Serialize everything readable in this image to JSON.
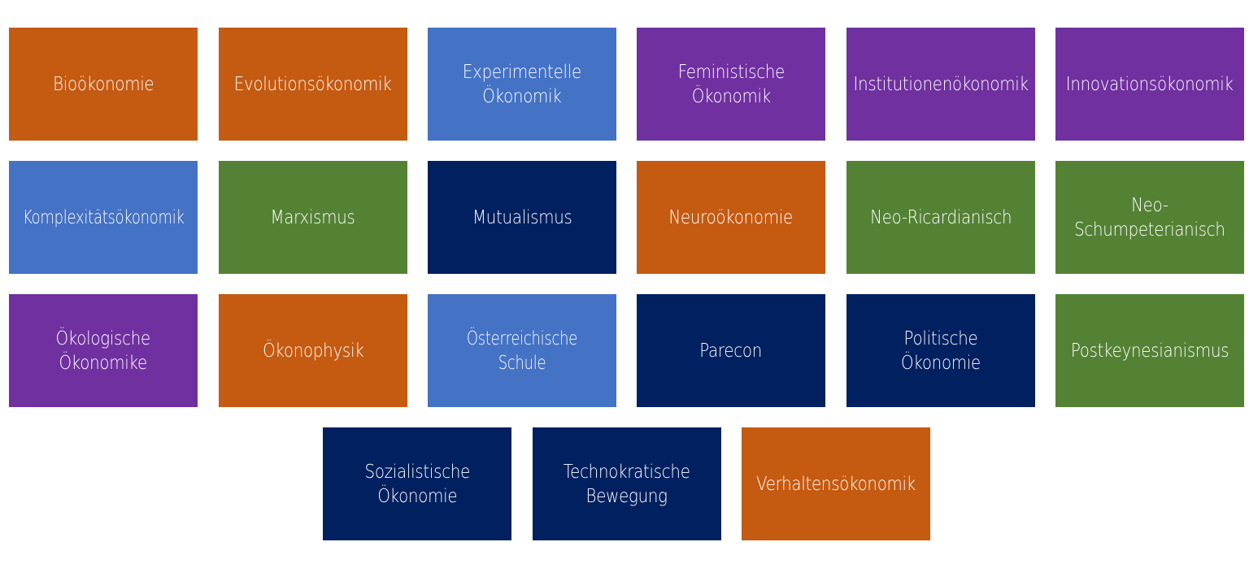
{
  "colors": {
    "orange": "#c55a11",
    "blue": "#4472c4",
    "purple": "#7030a0",
    "green": "#548235",
    "navy": "#002060"
  },
  "tiles": [
    {
      "label": "Bioökonomie",
      "color": "orange"
    },
    {
      "label": "Evolutionsökonomik",
      "color": "orange"
    },
    {
      "label": "Experimentelle\nÖkonomik",
      "color": "blue"
    },
    {
      "label": "Feministische\nÖkonomik",
      "color": "purple"
    },
    {
      "label": "Institutionenökonomik",
      "color": "purple"
    },
    {
      "label": "Innovationsökonomik",
      "color": "purple"
    },
    {
      "label": "Komplexitätsökonomik",
      "color": "blue"
    },
    {
      "label": "Marxismus",
      "color": "green"
    },
    {
      "label": "Mutualismus",
      "color": "navy"
    },
    {
      "label": "Neuroökonomie",
      "color": "orange"
    },
    {
      "label": "Neo-Ricardianisch",
      "color": "green"
    },
    {
      "label": "Neo-\nSchumpeterianisch",
      "color": "green"
    },
    {
      "label": "Ökologische\nÖkonomike",
      "color": "purple"
    },
    {
      "label": "Ökonophysik",
      "color": "orange"
    },
    {
      "label": "Österreichische Schule",
      "color": "blue"
    },
    {
      "label": "Parecon",
      "color": "navy"
    },
    {
      "label": "Politische Ökonomie",
      "color": "navy"
    },
    {
      "label": "Postkeynesianismus",
      "color": "green"
    },
    {
      "label": "Sozialistische\nÖkonomie",
      "color": "navy"
    },
    {
      "label": "Technokratische\nBewegung",
      "color": "navy"
    },
    {
      "label": "Verhaltensökonomik",
      "color": "orange"
    }
  ]
}
